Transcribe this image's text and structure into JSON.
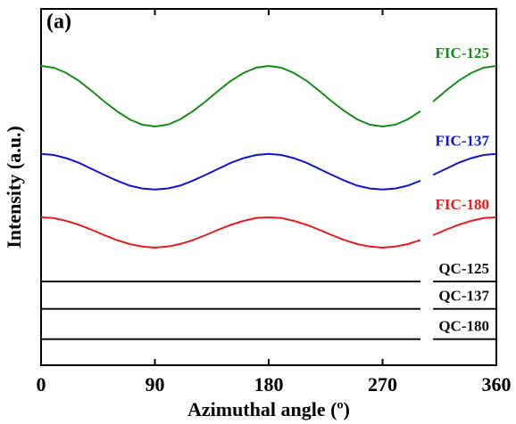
{
  "chart_data": {
    "type": "line",
    "annotation": "(a)",
    "xlabel": "Azimuthal angle (º)",
    "ylabel": "Intensity (a.u.)",
    "xlim": [
      0,
      360
    ],
    "xticks": [
      0,
      90,
      180,
      270,
      360
    ],
    "ylim": [
      0,
      100
    ],
    "x": [
      0,
      10,
      20,
      30,
      40,
      50,
      60,
      70,
      80,
      90,
      100,
      110,
      120,
      130,
      140,
      150,
      160,
      170,
      180,
      190,
      200,
      210,
      220,
      230,
      240,
      250,
      260,
      270,
      280,
      290,
      300,
      305,
      310,
      320,
      330,
      340,
      350,
      360
    ],
    "series": [
      {
        "name": "FIC-125",
        "color": "#1a8a1a",
        "values": [
          84,
          83.5,
          82,
          79.8,
          77,
          74,
          71.3,
          69,
          67.5,
          67,
          67.5,
          69,
          71.3,
          74,
          77,
          79.8,
          82,
          83.5,
          84,
          83.5,
          82,
          79.8,
          77,
          74,
          71.3,
          69,
          67.5,
          67,
          67.5,
          69,
          71.3,
          null,
          74,
          77,
          79.8,
          82,
          83.5,
          84
        ]
      },
      {
        "name": "FIC-137",
        "color": "#1414c8",
        "values": [
          59.3,
          59,
          58.1,
          56.8,
          55.1,
          53.4,
          51.8,
          50.4,
          49.6,
          49.3,
          49.6,
          50.4,
          51.8,
          53.4,
          55.1,
          56.8,
          58.1,
          59,
          59.3,
          59,
          58.1,
          56.8,
          55.1,
          53.4,
          51.8,
          50.4,
          49.6,
          49.3,
          49.6,
          50.4,
          51.8,
          null,
          53.4,
          55.1,
          56.8,
          58.1,
          59,
          59.3
        ]
      },
      {
        "name": "FIC-180",
        "color": "#e01e1e",
        "values": [
          41.5,
          41.3,
          40.5,
          39.4,
          38,
          36.5,
          35.1,
          34,
          33.3,
          33,
          33.3,
          34,
          35.1,
          36.5,
          38,
          39.4,
          40.5,
          41.3,
          41.5,
          41.3,
          40.5,
          39.4,
          38,
          36.5,
          35.1,
          34,
          33.3,
          33,
          33.3,
          34,
          35.1,
          null,
          36.5,
          38,
          39.4,
          40.5,
          41.3,
          41.5
        ]
      },
      {
        "name": "QC-125",
        "color": "#111111",
        "values": [
          23.5,
          23.5,
          23.5,
          23.5,
          23.5,
          23.5,
          23.5,
          23.5,
          23.5,
          23.5,
          23.5,
          23.5,
          23.5,
          23.5,
          23.5,
          23.5,
          23.5,
          23.5,
          23.5,
          23.5,
          23.5,
          23.5,
          23.5,
          23.5,
          23.5,
          23.5,
          23.5,
          23.5,
          23.5,
          23.5,
          23.5,
          null,
          23.5,
          23.5,
          23.5,
          23.5,
          23.5,
          23.5
        ]
      },
      {
        "name": "QC-137",
        "color": "#111111",
        "values": [
          15.8,
          15.8,
          15.8,
          15.8,
          15.8,
          15.8,
          15.8,
          15.8,
          15.8,
          15.8,
          15.8,
          15.8,
          15.8,
          15.8,
          15.8,
          15.8,
          15.8,
          15.8,
          15.8,
          15.8,
          15.8,
          15.8,
          15.8,
          15.8,
          15.8,
          15.8,
          15.8,
          15.8,
          15.8,
          15.8,
          15.8,
          null,
          15.8,
          15.8,
          15.8,
          15.8,
          15.8,
          15.8
        ]
      },
      {
        "name": "QC-180",
        "color": "#111111",
        "values": [
          7.3,
          7.3,
          7.3,
          7.3,
          7.3,
          7.3,
          7.3,
          7.3,
          7.3,
          7.3,
          7.3,
          7.3,
          7.3,
          7.3,
          7.3,
          7.3,
          7.3,
          7.3,
          7.3,
          7.3,
          7.3,
          7.3,
          7.3,
          7.3,
          7.3,
          7.3,
          7.3,
          7.3,
          7.3,
          7.3,
          7.3,
          null,
          7.3,
          7.3,
          7.3,
          7.3,
          7.3,
          7.3
        ]
      }
    ]
  }
}
